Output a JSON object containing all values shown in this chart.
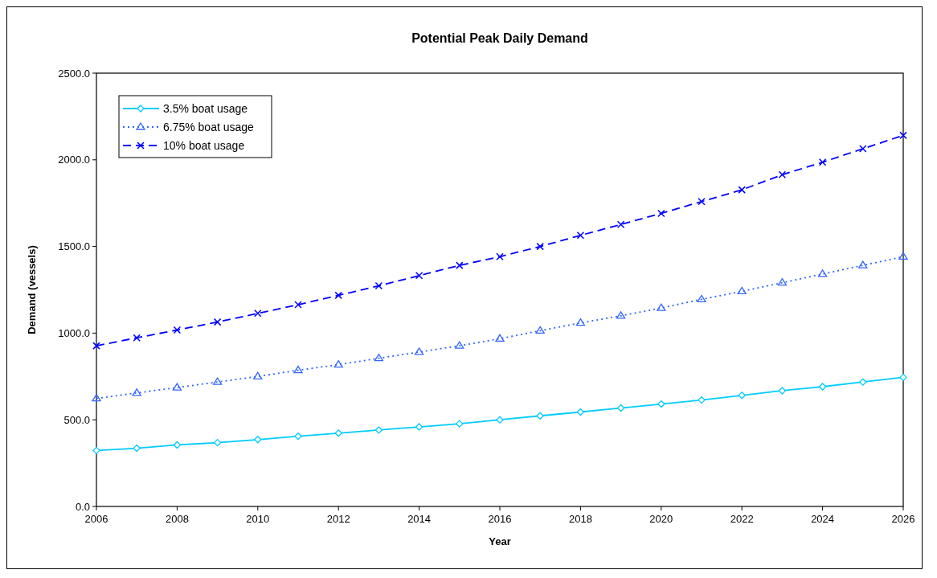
{
  "chart_data": {
    "type": "line",
    "title": "Potential Peak Daily Demand",
    "xlabel": "Year",
    "ylabel": "Demand (vessels)",
    "x": [
      2006,
      2007,
      2008,
      2009,
      2010,
      2011,
      2012,
      2013,
      2014,
      2015,
      2016,
      2017,
      2018,
      2019,
      2020,
      2021,
      2022,
      2023,
      2024,
      2025,
      2026
    ],
    "series": [
      {
        "name": "3.5% boat usage",
        "color": "#00ccff",
        "marker": "diamond",
        "line_style": "solid",
        "values": [
          323,
          336,
          355,
          368,
          386,
          405,
          423,
          441,
          459,
          477,
          500,
          523,
          545,
          568,
          591,
          614,
          641,
          668,
          691,
          718,
          745
        ]
      },
      {
        "name": "6.75% boat usage",
        "color": "#3366ff",
        "marker": "triangle",
        "line_style": "dotted",
        "values": [
          623,
          655,
          686,
          718,
          750,
          786,
          818,
          855,
          891,
          927,
          968,
          1014,
          1059,
          1100,
          1145,
          1195,
          1241,
          1291,
          1341,
          1391,
          1441
        ]
      },
      {
        "name": "10% boat usage",
        "color": "#0000ff",
        "marker": "cross",
        "line_style": "dashed",
        "values": [
          927,
          973,
          1018,
          1064,
          1114,
          1164,
          1218,
          1273,
          1332,
          1391,
          1441,
          1500,
          1564,
          1627,
          1691,
          1759,
          1827,
          1914,
          1986,
          2064,
          2141
        ]
      }
    ],
    "xlim": [
      2006,
      2026
    ],
    "xticks": [
      2006,
      2008,
      2010,
      2012,
      2014,
      2016,
      2018,
      2020,
      2022,
      2024,
      2026
    ],
    "ylim": [
      0,
      2500
    ],
    "yticks": [
      {
        "value": 0,
        "label": "0.0"
      },
      {
        "value": 500,
        "label": "500.0"
      },
      {
        "value": 1000,
        "label": "1000.0"
      },
      {
        "value": 1500,
        "label": "1500.0"
      },
      {
        "value": 2000,
        "label": "2000.0"
      },
      {
        "value": 2500,
        "label": "2500.0"
      }
    ],
    "grid": false,
    "legend": "top left"
  }
}
